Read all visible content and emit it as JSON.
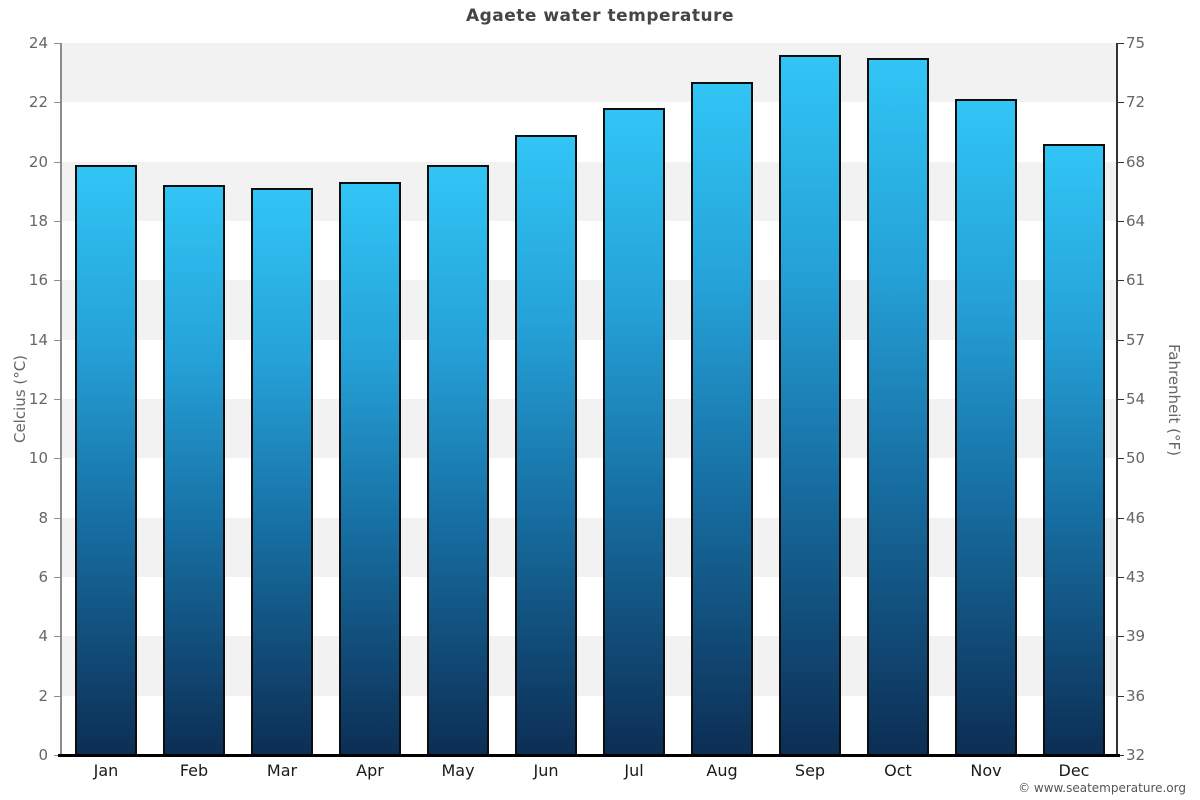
{
  "title": "Agaete water temperature",
  "footer": "© www.seatemperature.org",
  "axes": {
    "left_title": "Celcius (°C)",
    "right_title": "Fahrenheit (°F)"
  },
  "colors": {
    "band_gray": "#f2f2f2",
    "band_white": "#ffffff",
    "bar_gradient_top": "#31c5f5",
    "bar_gradient_upper": "#25a2d8",
    "bar_gradient_lower": "#176fa3",
    "bar_gradient_bottom": "#0c2e54",
    "bar_border": "#0d0d0d",
    "left_axis": "#8c8c8c",
    "right_axis": "#333333",
    "bottom_axis": "#000000"
  },
  "chart_data": {
    "type": "bar",
    "title": "Agaete water temperature",
    "categories": [
      "Jan",
      "Feb",
      "Mar",
      "Apr",
      "May",
      "Jun",
      "Jul",
      "Aug",
      "Sep",
      "Oct",
      "Nov",
      "Dec"
    ],
    "values": [
      19.9,
      19.2,
      19.1,
      19.3,
      19.9,
      20.9,
      21.8,
      22.7,
      23.6,
      23.5,
      22.1,
      20.6
    ],
    "unit": "°C",
    "ylabel_left": "Celcius (°C)",
    "ylabel_right": "Fahrenheit (°F)",
    "ylim_celsius": [
      0,
      24
    ],
    "yticks_celsius": [
      0,
      2,
      4,
      6,
      8,
      10,
      12,
      14,
      16,
      18,
      20,
      22,
      24
    ],
    "yticks_fahrenheit": [
      32,
      36,
      39,
      43,
      46,
      50,
      54,
      57,
      61,
      64,
      68,
      72,
      75
    ],
    "grid": "alternating horizontal bands every 2°C",
    "legend": "none",
    "bar_style": "vertical blue gradient, light cyan top to dark navy bottom, black outline"
  }
}
